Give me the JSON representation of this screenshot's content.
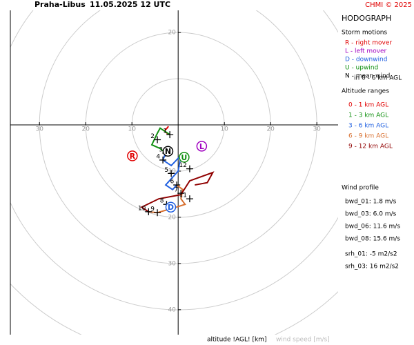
{
  "chart_data": {
    "type": "hodograph",
    "station": "Praha-Libus",
    "time": "11.05.2025 12 UTC",
    "credit": "CHMI © 2025",
    "title": "HODOGRAPH",
    "xlabel": "altitude !AGL! [km]",
    "ylabel": "wind speed [m/s]",
    "xlim": [
      -36.3,
      34.6
    ],
    "ylim": [
      -45.4,
      24.8
    ],
    "xticks": [
      {
        "value": -30,
        "label": "30"
      },
      {
        "value": -20,
        "label": "20"
      },
      {
        "value": -10,
        "label": "10"
      },
      10,
      20,
      30
    ],
    "yticks": [
      20,
      {
        "value": -10,
        "label": "10"
      },
      {
        "value": -20,
        "label": "20"
      },
      {
        "value": -30,
        "label": "30"
      },
      {
        "value": -40,
        "label": "40"
      }
    ],
    "rings": [
      10,
      20,
      30,
      40,
      50
    ],
    "series": [
      {
        "name": "0 - 1 km AGL",
        "color": "#e00000",
        "x": [
          -2.1,
          -2.4,
          -3.0,
          -2.4,
          -1.8
        ],
        "values": [
          -0.3,
          -0.7,
          -1.3,
          -1.8,
          -2.1
        ]
      },
      {
        "name": "1 - 3 km AGL",
        "color": "#109010",
        "x": [
          -1.8,
          -3.9,
          -4.5,
          -5.7,
          -3.9,
          -2.7
        ],
        "values": [
          -2.1,
          -0.7,
          -1.8,
          -4.3,
          -5.1,
          -6.1
        ]
      },
      {
        "name": "3 - 6 km AGL",
        "color": "#2060e0",
        "x": [
          -2.7,
          -3.3,
          -1.5,
          0.6,
          0.0,
          -2.7,
          -1.2,
          -0.3
        ],
        "values": [
          -6.1,
          -7.6,
          -8.8,
          -6.6,
          -10.0,
          -13.0,
          -14.0,
          -13.0
        ]
      },
      {
        "name": "6 - 9 km AGL",
        "color": "#d87030",
        "x": [
          -0.3,
          1.0,
          0.6,
          1.5,
          -0.4,
          -4.5,
          -6.4
        ],
        "values": [
          -13.0,
          -14.0,
          -16.0,
          -17.2,
          -17.8,
          -19.0,
          -18.8
        ]
      },
      {
        "name": "9 - 12 km AGL",
        "color": "#900000",
        "x": [
          -6.4,
          -7.9,
          -4.2,
          0.6,
          2.5,
          7.5,
          6.3,
          3.6
        ],
        "values": [
          -18.8,
          -17.8,
          -16.0,
          -15.1,
          -12.1,
          -10.3,
          -12.5,
          -13.0
        ]
      }
    ],
    "altitude_marks": [
      {
        "km": 1,
        "u": -1.8,
        "v": -2.1
      },
      {
        "km": 2,
        "u": -4.5,
        "v": -3.2
      },
      {
        "km": 3,
        "u": -2.7,
        "v": -6.1
      },
      {
        "km": 4,
        "u": -3.3,
        "v": -7.6
      },
      {
        "km": 5,
        "u": -1.5,
        "v": -10.5
      },
      {
        "km": 6,
        "u": -0.3,
        "v": -13.0
      },
      {
        "km": 7,
        "u": 0.6,
        "v": -14.8
      },
      {
        "km": 8,
        "u": -2.5,
        "v": -17.2
      },
      {
        "km": 9,
        "u": -4.5,
        "v": -19.0
      },
      {
        "km": 10,
        "u": -6.4,
        "v": -18.8
      },
      {
        "km": 11,
        "u": 2.5,
        "v": -16.0
      },
      {
        "km": 12,
        "u": 2.5,
        "v": -9.5
      }
    ],
    "storm_motions": [
      {
        "label": "R",
        "text": "R - right mover",
        "color": "#e00000",
        "u": -9.9,
        "v": -6.7
      },
      {
        "label": "L",
        "text": "L - left mover",
        "color": "#a000c0",
        "u": 5.1,
        "v": -4.6
      },
      {
        "label": "D",
        "text": "D - downwind",
        "color": "#2060e0",
        "u": -1.6,
        "v": -17.8
      },
      {
        "label": "U",
        "text": "U - upwind",
        "color": "#109010",
        "u": 1.3,
        "v": -7.0
      },
      {
        "label": "N",
        "text": "N - mean wind",
        "color": "#000000",
        "u": -2.2,
        "v": -5.7
      }
    ],
    "mean_wind_note": "in 0 - 6 km AGL",
    "storm_motions_title": "Storm motions",
    "altitude_ranges_title": "Altitude ranges",
    "wind_profile_title": "Wind profile",
    "wind_profile": [
      "bwd_01: 1.8 m/s",
      "bwd_03: 6.0 m/s",
      "bwd_06: 11.6 m/s",
      "bwd_08: 15.6 m/s",
      "srh_01: -5 m2/s2",
      "srh_03: 16 m2/s2"
    ]
  }
}
